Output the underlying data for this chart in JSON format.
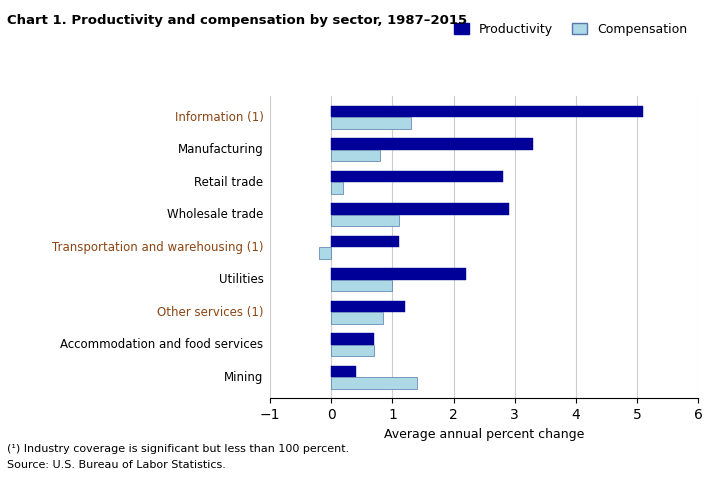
{
  "title": "Chart 1. Productivity and compensation by sector, 1987–2015",
  "categories": [
    "Mining",
    "Accommodation and food services",
    "Other services (1)",
    "Utilities",
    "Transportation and warehousing (1)",
    "Wholesale trade",
    "Retail trade",
    "Manufacturing",
    "Information (1)"
  ],
  "colored_labels": [
    "Information (1)",
    "Transportation and warehousing (1)",
    "Other services (1)"
  ],
  "label_color_special": "#8B4513",
  "label_color_normal": "#000000",
  "productivity": [
    0.4,
    0.7,
    1.2,
    2.2,
    1.1,
    2.9,
    2.8,
    3.3,
    5.1
  ],
  "compensation": [
    1.4,
    0.7,
    0.85,
    1.0,
    -0.2,
    1.1,
    0.2,
    0.8,
    1.3
  ],
  "productivity_color": "#000099",
  "compensation_color": "#ADD8E6",
  "bar_edge_color": "#5577AA",
  "xlabel": "Average annual percent change",
  "xlim": [
    -1,
    6
  ],
  "xticks": [
    -1,
    0,
    1,
    2,
    3,
    4,
    5,
    6
  ],
  "grid_color": "#cccccc",
  "footnote_line1": "(¹) Industry coverage is significant but less than 100 percent.",
  "footnote_line2": "Source: U.S. Bureau of Labor Statistics.",
  "legend_productivity": "Productivity",
  "legend_compensation": "Compensation",
  "bar_height": 0.35
}
